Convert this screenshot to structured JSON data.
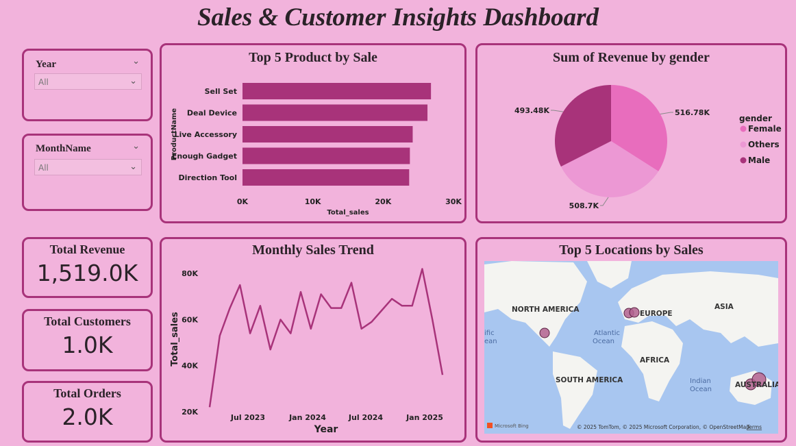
{
  "dashboard": {
    "title": "Sales & Customer Insights Dashboard"
  },
  "colors": {
    "accent": "#a8337a",
    "background": "#f2b3dc",
    "bar": "#a8337a",
    "line": "#a8337a",
    "female": "#e86dbd",
    "others": "#ec98d4",
    "male": "#a8337a"
  },
  "slicers": {
    "year": {
      "label": "Year",
      "value": "All"
    },
    "month": {
      "label": "MonthName",
      "value": "All"
    }
  },
  "kpis": {
    "revenue": {
      "label": "Total Revenue",
      "value": "1,519.0K"
    },
    "customers": {
      "label": "Total Customers",
      "value": "1.0K"
    },
    "orders": {
      "label": "Total Orders",
      "value": "2.0K"
    }
  },
  "charts": {
    "top_products_title": "Top 5 Product by Sale",
    "gender_title": "Sum of Revenue by gender",
    "trend_title": "Monthly Sales Trend",
    "map_title": "Top 5 Locations by Sales"
  },
  "chart_data": [
    {
      "type": "bar",
      "orientation": "horizontal",
      "title": "Top 5 Product by Sale",
      "categories": [
        "Sell Set",
        "Deal Device",
        "Live Accessory",
        "Enough Gadget",
        "Direction Tool"
      ],
      "values": [
        26800,
        26300,
        24200,
        23800,
        23700
      ],
      "xlabel": "Total_sales",
      "ylabel": "ProductName",
      "xlim": [
        0,
        30000
      ],
      "xticks": [
        "0K",
        "10K",
        "20K",
        "30K"
      ]
    },
    {
      "type": "pie",
      "title": "Sum of Revenue by gender",
      "legend_title": "gender",
      "labels": [
        "Female",
        "Others",
        "Male"
      ],
      "values": [
        516.78,
        508.7,
        493.48
      ],
      "value_labels": [
        "516.78K",
        "508.7K",
        "493.48K"
      ],
      "legend_position": "right"
    },
    {
      "type": "line",
      "title": "Monthly Sales Trend",
      "xlabel": "Year",
      "ylabel": "Total_sales",
      "ylim": [
        20000,
        86000
      ],
      "yticks": [
        "20K",
        "40K",
        "60K",
        "80K"
      ],
      "xticks": [
        "Jul 2023",
        "Jan 2024",
        "Jul 2024",
        "Jan 2025"
      ],
      "values": [
        22000,
        53000,
        65000,
        75000,
        54000,
        66000,
        47000,
        60000,
        54000,
        72000,
        56000,
        71000,
        65000,
        65000,
        76000,
        56000,
        59000,
        64000,
        69000,
        66000,
        66000,
        82000,
        60000,
        36000
      ]
    }
  ],
  "map": {
    "labels": [
      "NORTH AMERICA",
      "EUROPE",
      "ASIA",
      "AFRICA",
      "SOUTH AMERICA",
      "AUSTRALIA"
    ],
    "ocean_labels": [
      "Atlantic Ocean",
      "Indian Ocean"
    ],
    "attribution": "© 2025 TomTom, © 2025 Microsoft Corporation, © OpenStreetMap",
    "terms": "Terms",
    "brand": "Microsoft Bing",
    "partial_label": "ific ean"
  }
}
